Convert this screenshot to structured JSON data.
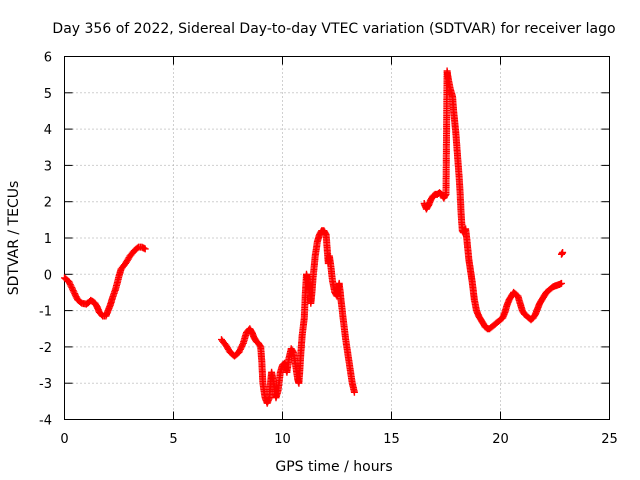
{
  "chart_data": {
    "type": "scatter",
    "title": "Day 356 of 2022, Sidereal Day-to-day VTEC variation (SDTVAR) for receiver lago",
    "xlabel": "GPS time / hours",
    "ylabel": "SDTVAR / TECUs",
    "xlim": [
      0,
      25
    ],
    "ylim": [
      -4,
      6
    ],
    "xticks": [
      0,
      5,
      10,
      15,
      20,
      25
    ],
    "yticks": [
      -4,
      -3,
      -2,
      -1,
      0,
      1,
      2,
      3,
      4,
      5,
      6
    ],
    "xtick_labels": [
      "0",
      "5",
      "10",
      "15",
      "20",
      "25"
    ],
    "ytick_labels": [
      "-4",
      "-3",
      "-2",
      "-1",
      "0",
      "1",
      "2",
      "3",
      "4",
      "5",
      "6"
    ],
    "grid": true,
    "marker": "plus",
    "color": "#ff0000",
    "series": [
      {
        "name": "SDTVAR",
        "segments": [
          [
            [
              0.0,
              -0.1
            ],
            [
              0.2,
              -0.2
            ],
            [
              0.4,
              -0.45
            ],
            [
              0.6,
              -0.7
            ],
            [
              0.8,
              -0.8
            ],
            [
              1.0,
              -0.82
            ],
            [
              1.1,
              -0.78
            ],
            [
              1.2,
              -0.72
            ],
            [
              1.3,
              -0.75
            ],
            [
              1.4,
              -0.8
            ],
            [
              1.5,
              -0.9
            ],
            [
              1.6,
              -1.05
            ],
            [
              1.75,
              -1.15
            ],
            [
              1.9,
              -1.15
            ],
            [
              2.0,
              -1.0
            ],
            [
              2.1,
              -0.85
            ],
            [
              2.2,
              -0.65
            ],
            [
              2.35,
              -0.4
            ],
            [
              2.5,
              -0.05
            ],
            [
              2.6,
              0.15
            ],
            [
              2.8,
              0.3
            ],
            [
              3.0,
              0.5
            ],
            [
              3.2,
              0.65
            ],
            [
              3.4,
              0.75
            ],
            [
              3.55,
              0.75
            ],
            [
              3.7,
              0.7
            ]
          ],
          [
            [
              7.2,
              -1.8
            ],
            [
              7.4,
              -1.95
            ],
            [
              7.6,
              -2.15
            ],
            [
              7.8,
              -2.25
            ],
            [
              8.0,
              -2.15
            ],
            [
              8.2,
              -1.9
            ],
            [
              8.35,
              -1.6
            ],
            [
              8.5,
              -1.5
            ],
            [
              8.6,
              -1.6
            ],
            [
              8.7,
              -1.75
            ],
            [
              8.8,
              -1.85
            ],
            [
              8.9,
              -1.9
            ],
            [
              9.0,
              -2.0
            ],
            [
              9.05,
              -2.4
            ],
            [
              9.1,
              -3.0
            ],
            [
              9.2,
              -3.4
            ],
            [
              9.3,
              -3.55
            ],
            [
              9.4,
              -3.4
            ],
            [
              9.45,
              -3.0
            ],
            [
              9.5,
              -2.7
            ],
            [
              9.6,
              -3.0
            ],
            [
              9.7,
              -3.4
            ],
            [
              9.8,
              -3.2
            ],
            [
              9.9,
              -2.7
            ],
            [
              10.0,
              -2.5
            ],
            [
              10.1,
              -2.45
            ],
            [
              10.2,
              -2.7
            ],
            [
              10.3,
              -2.3
            ],
            [
              10.4,
              -2.05
            ],
            [
              10.5,
              -2.15
            ],
            [
              10.6,
              -2.5
            ],
            [
              10.7,
              -2.9
            ],
            [
              10.75,
              -3.0
            ],
            [
              10.8,
              -2.6
            ],
            [
              10.85,
              -2.1
            ],
            [
              10.9,
              -1.7
            ],
            [
              11.0,
              -1.2
            ],
            [
              11.05,
              -0.5
            ],
            [
              11.1,
              0.0
            ],
            [
              11.15,
              -0.15
            ],
            [
              11.2,
              -0.3
            ],
            [
              11.25,
              -0.5
            ],
            [
              11.3,
              -0.8
            ],
            [
              11.35,
              -0.5
            ],
            [
              11.4,
              -0.1
            ],
            [
              11.5,
              0.5
            ],
            [
              11.6,
              0.9
            ],
            [
              11.7,
              1.1
            ],
            [
              11.8,
              1.2
            ],
            [
              11.9,
              1.2
            ],
            [
              12.0,
              1.1
            ],
            [
              12.05,
              0.7
            ],
            [
              12.1,
              0.3
            ],
            [
              12.15,
              0.5
            ],
            [
              12.2,
              0.3
            ],
            [
              12.3,
              -0.2
            ],
            [
              12.4,
              -0.5
            ],
            [
              12.5,
              -0.6
            ],
            [
              12.55,
              -0.4
            ],
            [
              12.6,
              -0.25
            ],
            [
              12.65,
              -0.5
            ],
            [
              12.7,
              -0.8
            ],
            [
              12.8,
              -1.3
            ],
            [
              12.9,
              -1.8
            ],
            [
              13.0,
              -2.2
            ],
            [
              13.1,
              -2.6
            ],
            [
              13.2,
              -3.0
            ],
            [
              13.3,
              -3.25
            ]
          ],
          [
            [
              16.5,
              1.95
            ],
            [
              16.6,
              1.8
            ],
            [
              16.7,
              1.9
            ],
            [
              16.8,
              2.05
            ],
            [
              16.9,
              2.15
            ],
            [
              17.0,
              2.2
            ],
            [
              17.1,
              2.2
            ],
            [
              17.2,
              2.25
            ],
            [
              17.3,
              2.2
            ],
            [
              17.4,
              2.1
            ],
            [
              17.5,
              2.2
            ],
            [
              17.55,
              5.6
            ],
            [
              17.6,
              5.4
            ],
            [
              17.7,
              5.1
            ],
            [
              17.8,
              4.9
            ],
            [
              17.85,
              4.5
            ],
            [
              17.9,
              4.2
            ],
            [
              17.95,
              3.9
            ],
            [
              18.0,
              3.5
            ],
            [
              18.05,
              3.1
            ],
            [
              18.1,
              2.7
            ],
            [
              18.15,
              2.2
            ],
            [
              18.2,
              1.6
            ],
            [
              18.25,
              1.2
            ],
            [
              18.3,
              1.15
            ],
            [
              18.35,
              1.2
            ],
            [
              18.4,
              1.25
            ],
            [
              18.45,
              1.0
            ],
            [
              18.5,
              0.7
            ],
            [
              18.55,
              0.4
            ],
            [
              18.6,
              0.2
            ],
            [
              18.65,
              0.0
            ],
            [
              18.7,
              -0.2
            ],
            [
              18.75,
              -0.45
            ],
            [
              18.8,
              -0.7
            ],
            [
              18.9,
              -1.0
            ],
            [
              19.0,
              -1.15
            ],
            [
              19.1,
              -1.25
            ],
            [
              19.2,
              -1.35
            ],
            [
              19.3,
              -1.45
            ],
            [
              19.4,
              -1.5
            ],
            [
              19.5,
              -1.5
            ],
            [
              19.6,
              -1.45
            ],
            [
              19.7,
              -1.4
            ],
            [
              19.8,
              -1.35
            ],
            [
              19.9,
              -1.3
            ],
            [
              20.0,
              -1.25
            ],
            [
              20.1,
              -1.2
            ],
            [
              20.2,
              -1.05
            ],
            [
              20.3,
              -0.85
            ],
            [
              20.4,
              -0.7
            ],
            [
              20.5,
              -0.6
            ],
            [
              20.6,
              -0.5
            ],
            [
              20.7,
              -0.55
            ],
            [
              20.8,
              -0.6
            ],
            [
              20.9,
              -0.8
            ],
            [
              21.0,
              -1.0
            ],
            [
              21.1,
              -1.1
            ],
            [
              21.2,
              -1.15
            ],
            [
              21.3,
              -1.2
            ],
            [
              21.4,
              -1.25
            ],
            [
              21.5,
              -1.2
            ],
            [
              21.6,
              -1.1
            ],
            [
              21.7,
              -0.95
            ],
            [
              21.8,
              -0.8
            ],
            [
              21.9,
              -0.7
            ],
            [
              22.0,
              -0.6
            ],
            [
              22.1,
              -0.5
            ],
            [
              22.2,
              -0.45
            ],
            [
              22.3,
              -0.4
            ],
            [
              22.4,
              -0.35
            ],
            [
              22.5,
              -0.32
            ],
            [
              22.6,
              -0.3
            ],
            [
              22.7,
              -0.28
            ],
            [
              22.8,
              -0.25
            ]
          ],
          [
            [
              22.8,
              0.55
            ],
            [
              22.85,
              0.6
            ]
          ]
        ]
      }
    ]
  }
}
